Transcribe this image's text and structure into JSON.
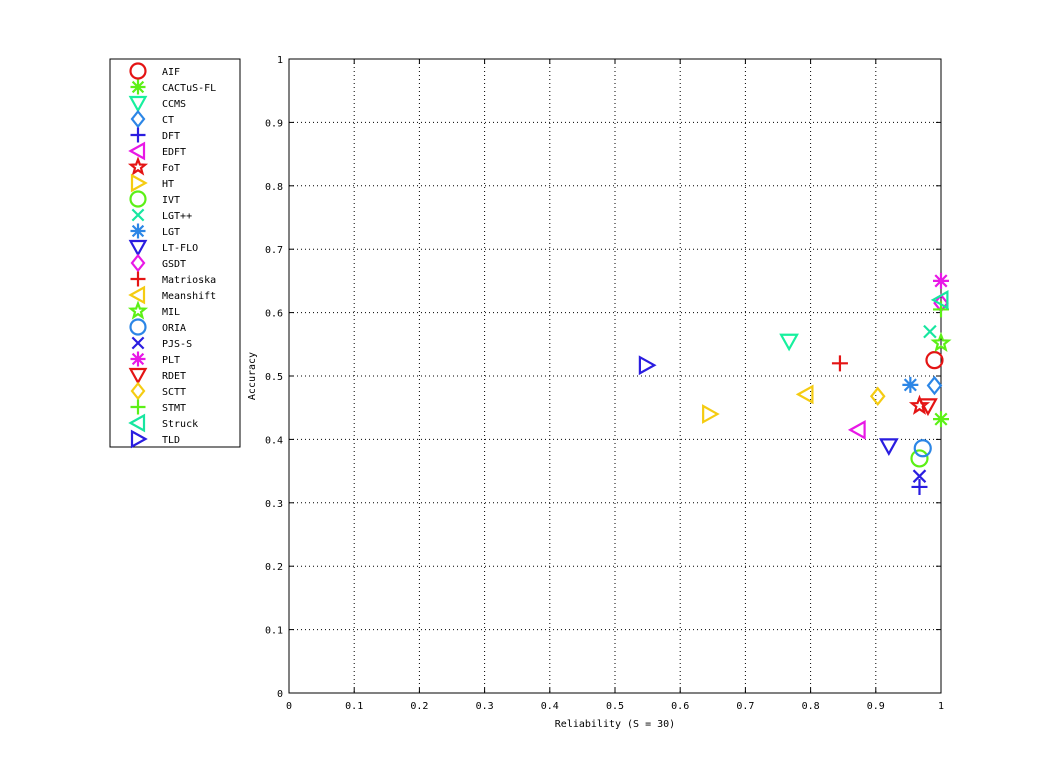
{
  "chart_data": {
    "type": "scatter",
    "title": "",
    "xlabel": "Reliability (S = 30)",
    "ylabel": "Accuracy",
    "xlim": [
      0,
      1
    ],
    "ylim": [
      0,
      1
    ],
    "xticks": [
      "0",
      "0.1",
      "0.2",
      "0.3",
      "0.4",
      "0.5",
      "0.6",
      "0.7",
      "0.8",
      "0.9",
      "1"
    ],
    "yticks": [
      "0",
      "0.1",
      "0.2",
      "0.3",
      "0.4",
      "0.5",
      "0.6",
      "0.7",
      "0.8",
      "0.9",
      "1"
    ],
    "grid": true,
    "legend_position": "outside-left",
    "series": [
      {
        "name": "AIF",
        "marker": "circle",
        "color": "#e41414",
        "x": 0.99,
        "y": 0.525
      },
      {
        "name": "CACTuS-FL",
        "marker": "asterisk",
        "color": "#5cf016",
        "x": 1.0,
        "y": 0.432
      },
      {
        "name": "CCMS",
        "marker": "triangle-down",
        "color": "#17f09e",
        "x": 0.767,
        "y": 0.555
      },
      {
        "name": "CT",
        "marker": "diamond",
        "color": "#2c86e6",
        "x": 0.99,
        "y": 0.485
      },
      {
        "name": "DFT",
        "marker": "plus",
        "color": "#2a1de0",
        "x": 0.967,
        "y": 0.325
      },
      {
        "name": "EDFT",
        "marker": "triangle-left",
        "color": "#e818e6",
        "x": 0.873,
        "y": 0.415
      },
      {
        "name": "FoT",
        "marker": "pentagram",
        "color": "#e41414",
        "x": 0.967,
        "y": 0.453
      },
      {
        "name": "HT",
        "marker": "triangle-right",
        "color": "#f5cc12",
        "x": 0.645,
        "y": 0.44
      },
      {
        "name": "IVT",
        "marker": "circle",
        "color": "#5cf016",
        "x": 0.967,
        "y": 0.37
      },
      {
        "name": "LGT++",
        "marker": "cross",
        "color": "#17e6a0",
        "x": 0.983,
        "y": 0.57
      },
      {
        "name": "LGT",
        "marker": "asterisk",
        "color": "#2c86e6",
        "x": 0.953,
        "y": 0.486
      },
      {
        "name": "LT-FLO",
        "marker": "triangle-down",
        "color": "#2a1de0",
        "x": 0.92,
        "y": 0.39
      },
      {
        "name": "GSDT",
        "marker": "diamond",
        "color": "#e818e6",
        "x": 1.0,
        "y": 0.615
      },
      {
        "name": "Matrioska",
        "marker": "plus",
        "color": "#e41414",
        "x": 0.845,
        "y": 0.52
      },
      {
        "name": "Meanshift",
        "marker": "triangle-left",
        "color": "#f5cc12",
        "x": 0.793,
        "y": 0.471
      },
      {
        "name": "MIL",
        "marker": "pentagram",
        "color": "#5cf016",
        "x": 1.0,
        "y": 0.552
      },
      {
        "name": "ORIA",
        "marker": "circle",
        "color": "#2c86e6",
        "x": 0.972,
        "y": 0.386
      },
      {
        "name": "PJS-S",
        "marker": "cross",
        "color": "#2a1de0",
        "x": 0.967,
        "y": 0.342
      },
      {
        "name": "PLT",
        "marker": "asterisk",
        "color": "#e818e6",
        "x": 1.0,
        "y": 0.65
      },
      {
        "name": "RDET",
        "marker": "triangle-down",
        "color": "#e41414",
        "x": 0.98,
        "y": 0.453
      },
      {
        "name": "SCTT",
        "marker": "diamond",
        "color": "#f5cc12",
        "x": 0.903,
        "y": 0.468
      },
      {
        "name": "STMT",
        "marker": "plus",
        "color": "#5cf016",
        "x": 1.0,
        "y": 0.605
      },
      {
        "name": "Struck",
        "marker": "triangle-left",
        "color": "#17e6a0",
        "x": 1.0,
        "y": 0.62
      },
      {
        "name": "TLD",
        "marker": "triangle-right",
        "color": "#2a1de0",
        "x": 0.548,
        "y": 0.517
      }
    ]
  }
}
